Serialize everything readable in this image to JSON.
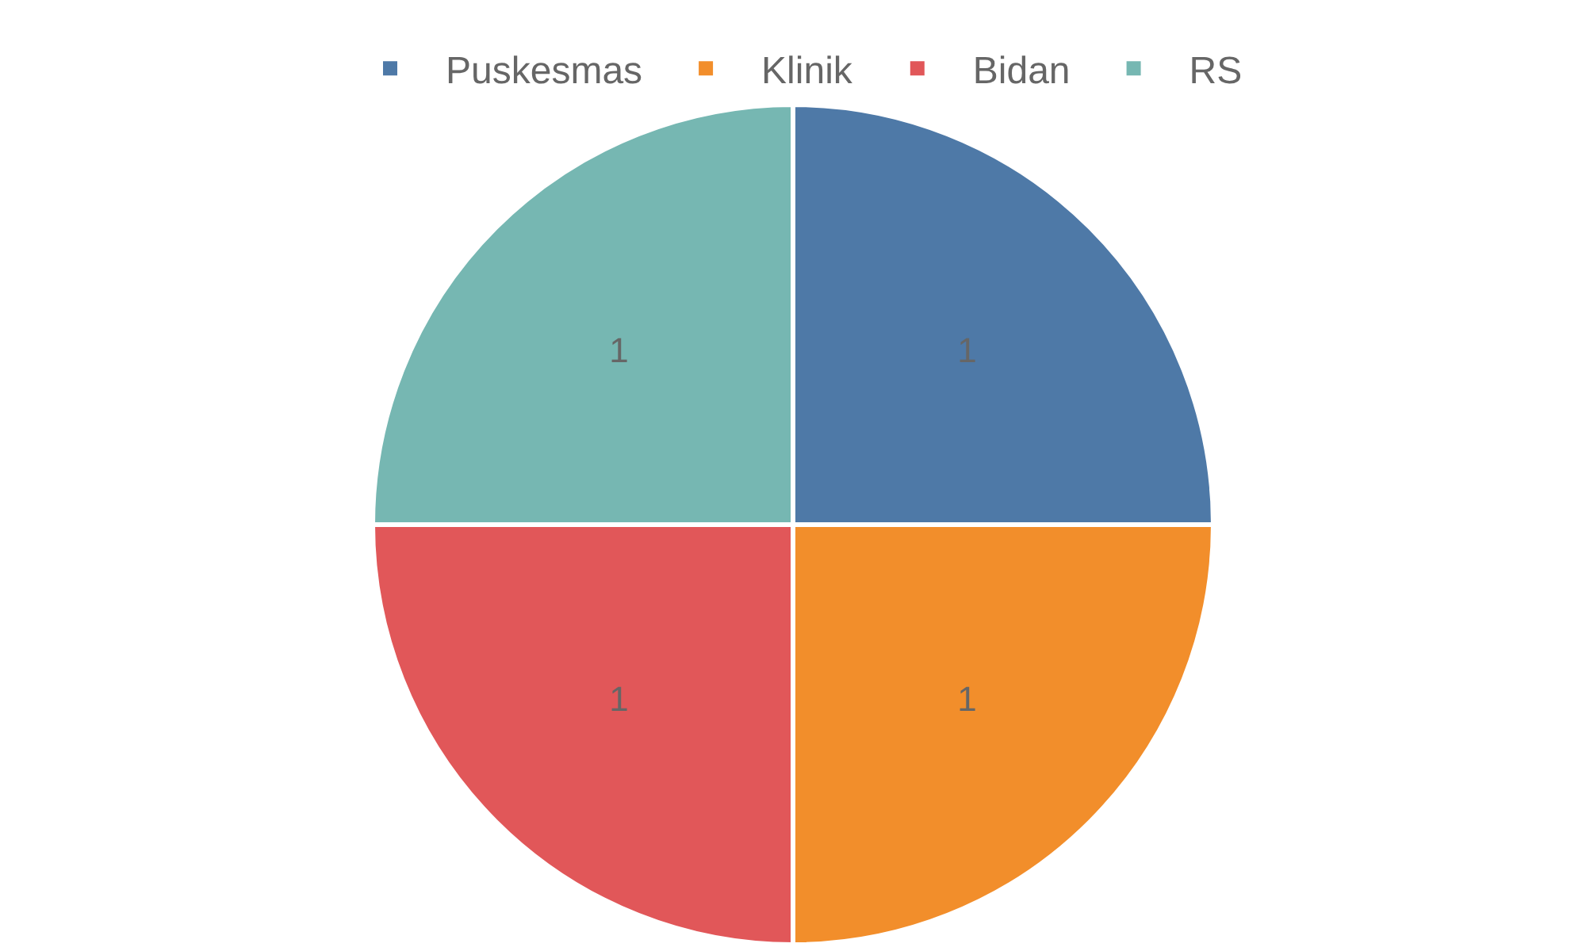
{
  "chart_data": {
    "type": "pie",
    "categories": [
      "Puskesmas",
      "Klinik",
      "Bidan",
      "RS"
    ],
    "values": [
      1,
      1,
      1,
      1
    ],
    "colors": [
      "#4e79a7",
      "#f28e2b",
      "#e15759",
      "#76b7b2"
    ],
    "data_labels": true,
    "legend": "top"
  }
}
